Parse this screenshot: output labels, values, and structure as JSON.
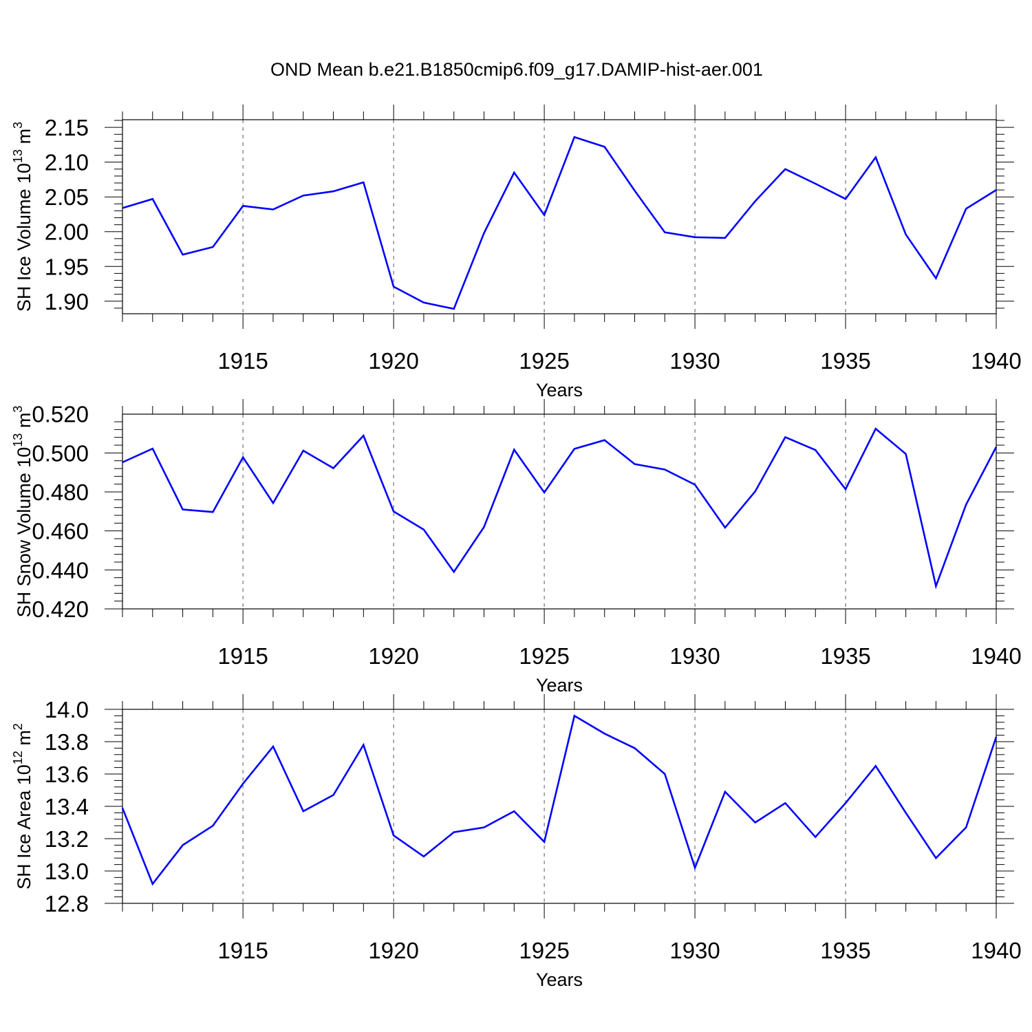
{
  "title": "OND Mean b.e21.B1850cmip6.f09_g17.DAMIP-hist-aer.001",
  "colors": {
    "line": "#0000ff",
    "axis": "#000000",
    "grid": "#555555"
  },
  "chart_data": [
    {
      "type": "line",
      "xlabel": "Years",
      "ylabel_base": "SH Ice Volume 10",
      "ylabel_sup1": "13",
      "ylabel_unit": " m",
      "ylabel_sup2": "3",
      "xlim": [
        1911,
        1940
      ],
      "ylim": [
        1.882,
        2.161
      ],
      "xticks": [
        1915,
        1920,
        1925,
        1930,
        1935,
        1940
      ],
      "yticks": [
        "1.90",
        "1.95",
        "2.00",
        "2.05",
        "2.10",
        "2.15"
      ],
      "grid": "vertical dashed at major x ticks",
      "x": [
        1911,
        1912,
        1913,
        1914,
        1915,
        1916,
        1917,
        1918,
        1919,
        1920,
        1921,
        1922,
        1923,
        1924,
        1925,
        1926,
        1927,
        1928,
        1929,
        1930,
        1931,
        1932,
        1933,
        1934,
        1935,
        1936,
        1937,
        1938,
        1939,
        1940
      ],
      "series": [
        {
          "values": [
            2.034,
            2.047,
            1.967,
            1.978,
            2.037,
            2.032,
            2.052,
            2.058,
            2.071,
            1.921,
            1.898,
            1.889,
            1.998,
            2.085,
            2.024,
            2.136,
            2.122,
            2.059,
            1.999,
            1.992,
            1.991,
            2.044,
            2.09,
            2.069,
            2.047,
            2.107,
            1.996,
            1.933,
            2.033,
            2.06
          ]
        }
      ]
    },
    {
      "type": "line",
      "xlabel": "Years",
      "ylabel_base": "SH Snow Volume 10",
      "ylabel_sup1": "13",
      "ylabel_unit": " m",
      "ylabel_sup2": "3",
      "xlim": [
        1911,
        1940
      ],
      "ylim": [
        0.42,
        0.5199
      ],
      "xticks": [
        1915,
        1920,
        1925,
        1930,
        1935,
        1940
      ],
      "yticks": [
        "0.420",
        "0.440",
        "0.460",
        "0.480",
        "0.500",
        "0.520"
      ],
      "grid": "vertical dashed at major x ticks",
      "x": [
        1911,
        1912,
        1913,
        1914,
        1915,
        1916,
        1917,
        1918,
        1919,
        1920,
        1921,
        1922,
        1923,
        1924,
        1925,
        1926,
        1927,
        1928,
        1929,
        1930,
        1931,
        1932,
        1933,
        1934,
        1935,
        1936,
        1937,
        1938,
        1939,
        1940
      ],
      "series": [
        {
          "values": [
            0.4952,
            0.5022,
            0.471,
            0.4697,
            0.4978,
            0.4743,
            0.5012,
            0.4922,
            0.5089,
            0.47,
            0.4607,
            0.439,
            0.462,
            0.5017,
            0.4797,
            0.5021,
            0.5066,
            0.4943,
            0.4915,
            0.4837,
            0.4617,
            0.4803,
            0.5081,
            0.5015,
            0.4814,
            0.5124,
            0.4995,
            0.4317,
            0.4735,
            0.5031
          ]
        }
      ]
    },
    {
      "type": "line",
      "xlabel": "Years",
      "ylabel_base": "SH Ice Area 10",
      "ylabel_sup1": "12",
      "ylabel_unit": " m",
      "ylabel_sup2": "2",
      "xlim": [
        1911,
        1940
      ],
      "ylim": [
        12.8,
        14.0
      ],
      "xticks": [
        1915,
        1920,
        1925,
        1930,
        1935,
        1940
      ],
      "yticks": [
        "12.8",
        "13.0",
        "13.2",
        "13.4",
        "13.6",
        "13.8",
        "14.0"
      ],
      "grid": "vertical dashed at major x ticks",
      "x": [
        1911,
        1912,
        1913,
        1914,
        1915,
        1916,
        1917,
        1918,
        1919,
        1920,
        1921,
        1922,
        1923,
        1924,
        1925,
        1926,
        1927,
        1928,
        1929,
        1930,
        1931,
        1932,
        1933,
        1934,
        1935,
        1936,
        1937,
        1938,
        1939,
        1940
      ],
      "series": [
        {
          "values": [
            13.39,
            12.92,
            13.16,
            13.28,
            13.54,
            13.77,
            13.37,
            13.47,
            13.78,
            13.22,
            13.09,
            13.24,
            13.27,
            13.37,
            13.18,
            13.96,
            13.85,
            13.76,
            13.6,
            13.02,
            13.49,
            13.3,
            13.42,
            13.21,
            13.42,
            13.65,
            13.36,
            13.08,
            13.27,
            13.83
          ]
        }
      ]
    }
  ]
}
